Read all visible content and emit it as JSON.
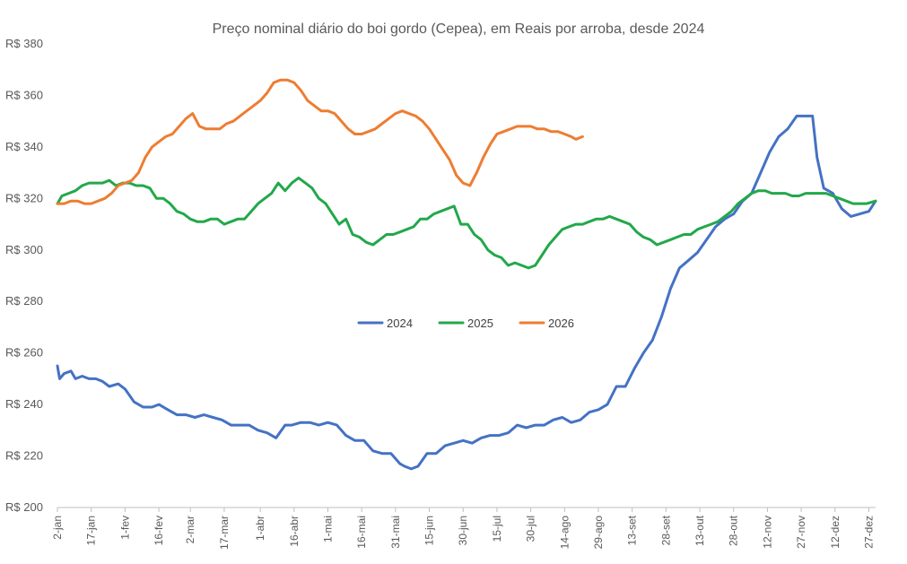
{
  "chart_data": {
    "type": "line",
    "title": "Preço nominal diário do boi gordo (Cepea), em Reais por arroba, desde 2024",
    "xlabel": "",
    "ylabel": "",
    "ylim": [
      200,
      380
    ],
    "yticks": [
      200,
      220,
      240,
      260,
      280,
      300,
      320,
      340,
      360,
      380
    ],
    "ytick_labels": [
      "R$ 200",
      "R$ 220",
      "R$ 240",
      "R$ 260",
      "R$ 280",
      "R$ 300",
      "R$ 320",
      "R$ 340",
      "R$ 360",
      "R$ 380"
    ],
    "xlim": [
      2,
      365
    ],
    "xticks": [
      2,
      17,
      32,
      47,
      61,
      76,
      92,
      107,
      122,
      137,
      152,
      167,
      182,
      197,
      212,
      227,
      242,
      257,
      272,
      287,
      302,
      317,
      332,
      347,
      362
    ],
    "xtick_labels": [
      "2-jan",
      "17-jan",
      "1-fev",
      "16-fev",
      "2-mar",
      "17-mar",
      "1-abr",
      "16-abr",
      "1-mai",
      "16-mai",
      "31-mai",
      "15-jun",
      "30-jun",
      "15-jul",
      "30-jul",
      "14-ago",
      "29-ago",
      "13-set",
      "28-set",
      "13-out",
      "28-out",
      "12-nov",
      "27-nov",
      "12-dez",
      "27-dez"
    ],
    "legend_position": "center",
    "grid": false,
    "series": [
      {
        "name": "2024",
        "color": "#4472C4",
        "x": [
          2,
          3,
          5,
          8,
          10,
          13,
          16,
          19,
          22,
          25,
          29,
          32,
          36,
          40,
          44,
          47,
          51,
          55,
          59,
          63,
          67,
          71,
          75,
          79,
          83,
          87,
          91,
          95,
          99,
          103,
          106,
          110,
          114,
          118,
          122,
          126,
          130,
          134,
          138,
          142,
          146,
          150,
          154,
          156,
          159,
          162,
          166,
          170,
          174,
          178,
          182,
          186,
          190,
          194,
          198,
          202,
          206,
          210,
          214,
          218,
          222,
          226,
          230,
          234,
          238,
          242,
          246,
          250,
          254,
          258,
          262,
          266,
          270,
          274,
          278,
          282,
          286,
          290,
          294,
          298,
          302,
          306,
          310,
          314,
          318,
          322,
          326,
          330,
          334,
          337,
          339,
          342,
          346,
          350,
          354,
          358,
          362,
          365
        ],
        "values": [
          255,
          250,
          252,
          253,
          250,
          251,
          250,
          250,
          249,
          247,
          248,
          246,
          241,
          239,
          239,
          240,
          238,
          236,
          236,
          235,
          236,
          235,
          234,
          232,
          232,
          232,
          230,
          229,
          227,
          232,
          232,
          233,
          233,
          232,
          233,
          232,
          228,
          226,
          226,
          222,
          221,
          221,
          217,
          216,
          215,
          216,
          221,
          221,
          224,
          225,
          226,
          225,
          227,
          228,
          228,
          229,
          232,
          231,
          232,
          232,
          234,
          235,
          233,
          234,
          237,
          238,
          240,
          247,
          247,
          254,
          260,
          265,
          274,
          285,
          293,
          296,
          299,
          304,
          309,
          312,
          314,
          319,
          322,
          330,
          338,
          344,
          347,
          352,
          352,
          352,
          336,
          324,
          322,
          316,
          313,
          314,
          315,
          319
        ]
      },
      {
        "name": "2025",
        "color": "#22A84A",
        "x": [
          2,
          4,
          7,
          10,
          13,
          16,
          19,
          22,
          25,
          28,
          31,
          34,
          37,
          40,
          43,
          46,
          49,
          52,
          55,
          58,
          61,
          64,
          67,
          70,
          73,
          76,
          79,
          82,
          85,
          88,
          91,
          94,
          97,
          100,
          103,
          106,
          109,
          112,
          115,
          118,
          121,
          124,
          127,
          130,
          133,
          136,
          139,
          142,
          145,
          148,
          151,
          154,
          157,
          160,
          163,
          166,
          169,
          172,
          175,
          178,
          181,
          184,
          187,
          190,
          193,
          196,
          199,
          202,
          205,
          208,
          211,
          214,
          217,
          220,
          223,
          226,
          229,
          232,
          235,
          238,
          241,
          244,
          247,
          250,
          253,
          256,
          259,
          262,
          265,
          268,
          271,
          274,
          277,
          280,
          283,
          286,
          289,
          292,
          295,
          298,
          301,
          304,
          307,
          310,
          313,
          316,
          319,
          322,
          325,
          328,
          331,
          334,
          337,
          340,
          343,
          346,
          349,
          352,
          355,
          358,
          361,
          365
        ],
        "values": [
          318,
          321,
          322,
          323,
          325,
          326,
          326,
          326,
          327,
          325,
          326,
          326,
          325,
          325,
          324,
          320,
          320,
          318,
          315,
          314,
          312,
          311,
          311,
          312,
          312,
          310,
          311,
          312,
          312,
          315,
          318,
          320,
          322,
          326,
          323,
          326,
          328,
          326,
          324,
          320,
          318,
          314,
          310,
          312,
          306,
          305,
          303,
          302,
          304,
          306,
          306,
          307,
          308,
          309,
          312,
          312,
          314,
          315,
          316,
          317,
          310,
          310,
          306,
          304,
          300,
          298,
          297,
          294,
          295,
          294,
          293,
          294,
          298,
          302,
          305,
          308,
          309,
          310,
          310,
          311,
          312,
          312,
          313,
          312,
          311,
          310,
          307,
          305,
          304,
          302,
          303,
          304,
          305,
          306,
          306,
          308,
          309,
          310,
          311,
          313,
          315,
          318,
          320,
          322,
          323,
          323,
          322,
          322,
          322,
          321,
          321,
          322,
          322,
          322,
          322,
          321,
          320,
          319,
          318,
          318,
          318,
          319
        ]
      },
      {
        "name": "2026",
        "color": "#ED7D31",
        "x": [
          2,
          5,
          8,
          11,
          14,
          17,
          20,
          23,
          26,
          29,
          32,
          35,
          38,
          41,
          44,
          47,
          50,
          53,
          56,
          59,
          62,
          65,
          68,
          71,
          74,
          77,
          80,
          83,
          86,
          89,
          92,
          95,
          98,
          101,
          104,
          107,
          110,
          113,
          116,
          119,
          122,
          125,
          128,
          131,
          134,
          137,
          140,
          143,
          146,
          149,
          152,
          155,
          158,
          161,
          164,
          167,
          170,
          173,
          176,
          179,
          182,
          185,
          188,
          191,
          194,
          197,
          200,
          203,
          206,
          209,
          212,
          215,
          218,
          221,
          224,
          227,
          230,
          232,
          235
        ],
        "values": [
          318,
          318,
          319,
          319,
          318,
          318,
          319,
          320,
          322,
          325,
          326,
          327,
          330,
          336,
          340,
          342,
          344,
          345,
          348,
          351,
          353,
          348,
          347,
          347,
          347,
          349,
          350,
          352,
          354,
          356,
          358,
          361,
          365,
          366,
          366,
          365,
          362,
          358,
          356,
          354,
          354,
          353,
          350,
          347,
          345,
          345,
          346,
          347,
          349,
          351,
          353,
          354,
          353,
          352,
          350,
          347,
          343,
          339,
          335,
          329,
          326,
          325,
          330,
          336,
          341,
          345,
          346,
          347,
          348,
          348,
          348,
          347,
          347,
          346,
          346,
          345,
          344,
          343,
          344
        ]
      }
    ]
  }
}
